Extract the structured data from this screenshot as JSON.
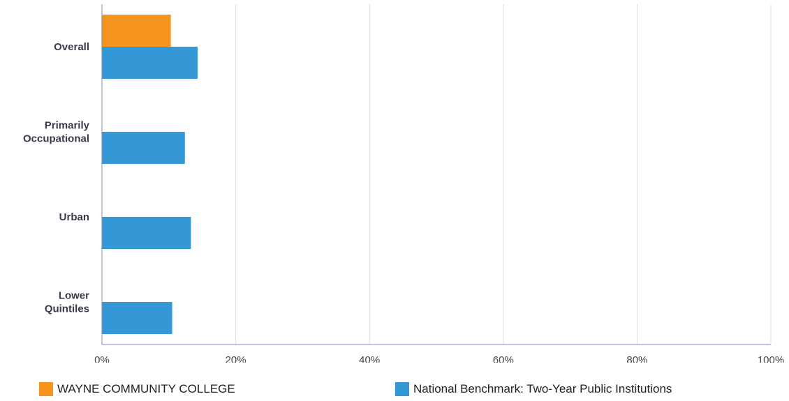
{
  "chart_data": {
    "type": "bar",
    "orientation": "horizontal",
    "categories": [
      [
        "Overall"
      ],
      [
        "Primarily",
        "Occupational"
      ],
      [
        "Urban"
      ],
      [
        "Lower",
        "Quintiles"
      ]
    ],
    "series": [
      {
        "name": "WAYNE COMMUNITY COLLEGE",
        "color": "#f7941d",
        "values": [
          10.3,
          null,
          null,
          null
        ]
      },
      {
        "name": "National Benchmark: Two-Year Public Institutions",
        "color": "#3598d6",
        "values": [
          14.3,
          12.4,
          13.3,
          10.5
        ]
      }
    ],
    "xlim": [
      0,
      100
    ],
    "xticks": [
      0,
      20,
      40,
      60,
      80,
      100
    ],
    "tick_suffix": "%",
    "grid": true,
    "legend_position": "bottom"
  }
}
